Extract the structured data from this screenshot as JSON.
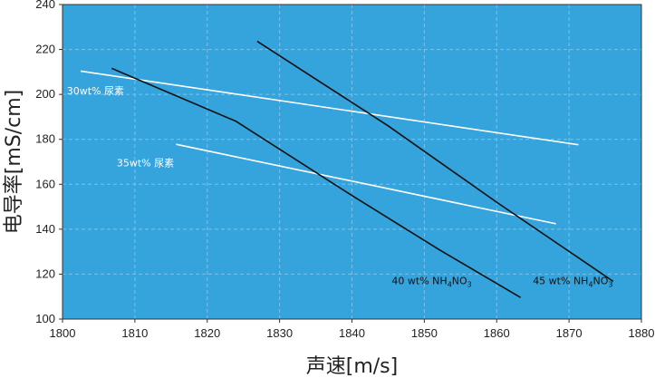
{
  "chart_data": {
    "type": "line",
    "title": "",
    "xlabel": "声速[m/s]",
    "ylabel": "电导率[mS/cm]",
    "xlim": [
      1800,
      1880
    ],
    "ylim": [
      100,
      240
    ],
    "xticks": [
      1800,
      1810,
      1820,
      1830,
      1840,
      1850,
      1860,
      1870,
      1880
    ],
    "yticks": [
      100,
      120,
      140,
      160,
      180,
      200,
      220,
      240
    ],
    "grid": true,
    "colors": {
      "plot_bg": "#35a3dc",
      "grid": "#79c3eb",
      "white_line": "#ffffff",
      "black_line": "#111111"
    },
    "series": [
      {
        "color": "#ffffff",
        "x": [
          1802.5,
          1871.3
        ],
        "y": [
          210.4,
          177.6
        ]
      },
      {
        "color": "#ffffff",
        "x": [
          1815.7,
          1868.2
        ],
        "y": [
          177.8,
          142.4
        ]
      },
      {
        "color": "#111111",
        "x": [
          1806.8,
          1824.0,
          1840.0,
          1852.0,
          1863.3
        ],
        "y": [
          211.6,
          188.0,
          155.0,
          131.0,
          109.6
        ]
      },
      {
        "color": "#111111",
        "x": [
          1826.9,
          1845.0,
          1860.0,
          1876.1
        ],
        "y": [
          223.6,
          186.0,
          152.0,
          116.8
        ]
      }
    ],
    "annotations": [
      {
        "text": "30wt% 尿素",
        "x": 1800.6,
        "y": 200.0,
        "color": "#ffffff"
      },
      {
        "text": "35wt% 尿素",
        "x": 1807.5,
        "y": 168.0,
        "color": "#ffffff"
      },
      {
        "text": "40 wt% NH",
        "sub1": "4",
        "mid": "NO",
        "sub2": "3",
        "x": 1845.5,
        "y": 115.5,
        "color": "#111111"
      },
      {
        "text": "45 wt% NH",
        "sub1": "4",
        "mid": "NO",
        "sub2": "3",
        "x": 1865.0,
        "y": 115.5,
        "color": "#111111"
      }
    ]
  }
}
